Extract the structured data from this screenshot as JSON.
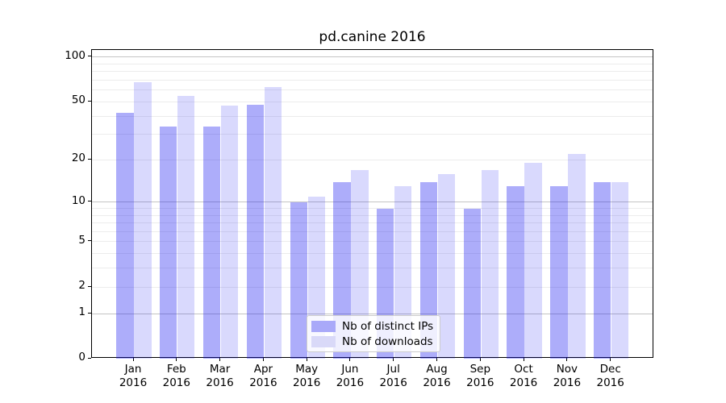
{
  "chart_data": {
    "type": "bar",
    "title": "pd.canine 2016",
    "categories": [
      "Jan 2016",
      "Feb 2016",
      "Mar 2016",
      "Apr 2016",
      "May 2016",
      "Jun 2016",
      "Jul 2016",
      "Aug 2016",
      "Sep 2016",
      "Oct 2016",
      "Nov 2016",
      "Dec 2016"
    ],
    "series": [
      {
        "name": "Nb of distinct IPs",
        "key": "distinct-ips",
        "color": "#a9a9f9",
        "fill": "rgba(16,16,240,0.345)",
        "values": [
          42,
          34,
          34,
          48,
          10,
          14,
          9,
          14,
          9,
          13,
          13,
          14
        ]
      },
      {
        "name": "Nb of downloads",
        "key": "downloads",
        "color": "#d9d9f8",
        "fill": "rgba(16,16,240,0.16)",
        "values": [
          68,
          55,
          47,
          63,
          11,
          17,
          13,
          16,
          17,
          19,
          22,
          14
        ]
      }
    ],
    "xlabel": "",
    "ylabel": "",
    "yscale": "log1p",
    "ylim": [
      0,
      112
    ],
    "yticks": [
      0,
      1,
      2,
      5,
      10,
      20,
      50,
      100
    ],
    "major_gridlines": [
      1,
      10,
      100
    ],
    "minor_gridlines": [
      2,
      3,
      4,
      5,
      6,
      7,
      8,
      9,
      20,
      30,
      40,
      50,
      60,
      70,
      80,
      90
    ],
    "grid": true,
    "legend_position": "lower center"
  },
  "colors": {
    "major_grid": "#c4c4c4",
    "minor_grid": "#ececec",
    "axis": "#000000",
    "text": "#000000",
    "background": "#ffffff",
    "legend_border": "#cccccc"
  }
}
